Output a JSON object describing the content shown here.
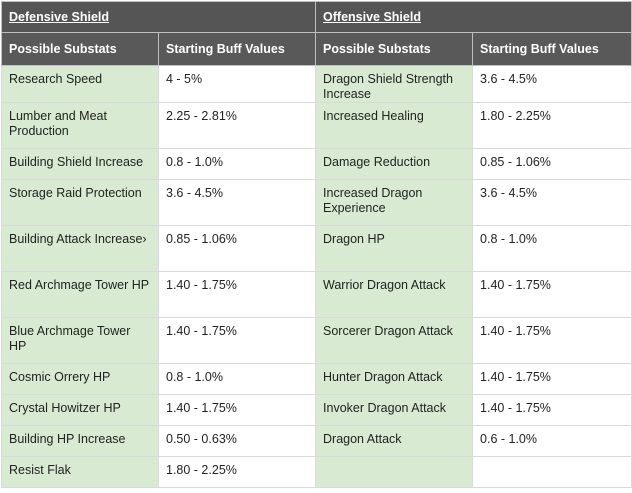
{
  "defensive": {
    "title": "Defensive Shield",
    "col_substat": "Possible Substats",
    "col_values": "Starting Buff Values",
    "rows": [
      {
        "substat": "Research Speed",
        "value": "4 - 5%"
      },
      {
        "substat": "Lumber and Meat Production",
        "value": "2.25 - 2.81%"
      },
      {
        "substat": "Building Shield Increase",
        "value": "0.8 - 1.0%"
      },
      {
        "substat": "Storage Raid Protection",
        "value": "3.6 - 4.5%"
      },
      {
        "substat": "Building Attack Increase›",
        "value": "0.85 - 1.06%"
      },
      {
        "substat": "Red Archmage Tower HP",
        "value": "1.40 - 1.75%"
      },
      {
        "substat": "Blue Archmage Tower HP",
        "value": "1.40 - 1.75%"
      },
      {
        "substat": "Cosmic Orrery HP",
        "value": "0.8 - 1.0%"
      },
      {
        "substat": "Crystal Howitzer HP",
        "value": "1.40 - 1.75%"
      },
      {
        "substat": "Building HP Increase",
        "value": "0.50 - 0.63%"
      },
      {
        "substat": "Resist Flak",
        "value": "1.80 - 2.25%"
      }
    ]
  },
  "offensive": {
    "title": "Offensive Shield",
    "col_substat": "Possible Substats",
    "col_values": "Starting Buff Values",
    "rows": [
      {
        "substat": "Dragon Shield Strength Increase",
        "value": "3.6 - 4.5%"
      },
      {
        "substat": "Increased Healing",
        "value": "1.80 - 2.25%"
      },
      {
        "substat": "Damage Reduction",
        "value": "0.85 - 1.06%"
      },
      {
        "substat": "Increased Dragon Experience",
        "value": "3.6 - 4.5%"
      },
      {
        "substat": "Dragon HP",
        "value": "0.8 - 1.0%"
      },
      {
        "substat": "Warrior Dragon Attack",
        "value": "1.40 - 1.75%"
      },
      {
        "substat": "Sorcerer Dragon Attack",
        "value": "1.40 - 1.75%"
      },
      {
        "substat": "Hunter Dragon Attack",
        "value": "1.40 - 1.75%"
      },
      {
        "substat": "Invoker Dragon Attack",
        "value": "1.40 - 1.75%"
      },
      {
        "substat": "Dragon Attack",
        "value": "0.6 - 1.0%"
      },
      {
        "substat": "",
        "value": ""
      }
    ]
  },
  "colors": {
    "header_bg": "#595959",
    "substat_bg": "#d9ead3",
    "header_text": "#ffffff"
  }
}
